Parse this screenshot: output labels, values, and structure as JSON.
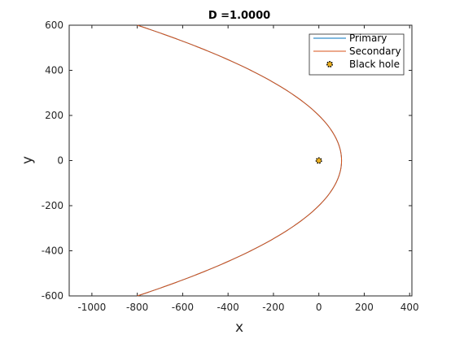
{
  "chart_data": {
    "type": "line",
    "title": "D =1.0000",
    "xlabel": "x",
    "ylabel": "y",
    "xlim": [
      -1100,
      410
    ],
    "ylim": [
      -600,
      600
    ],
    "xticks": [
      -1000,
      -800,
      -600,
      -400,
      -200,
      0,
      200,
      400
    ],
    "yticks": [
      -600,
      -400,
      -200,
      0,
      200,
      400,
      600
    ],
    "xtick_labels": [
      "-1000",
      "-800",
      "-600",
      "-400",
      "-200",
      "0",
      "200",
      "400"
    ],
    "ytick_labels": [
      "-600",
      "-400",
      "-200",
      "0",
      "200",
      "400",
      "600"
    ],
    "grid": false,
    "legend_position": "top-right",
    "series": [
      {
        "name": "Primary",
        "color": "#0072BD",
        "style": "line",
        "x": [
          -800,
          -600,
          -400,
          -200,
          0,
          40,
          80,
          100,
          80,
          40,
          0,
          -200,
          -400,
          -600,
          -800
        ],
        "y": [
          600,
          520,
          424,
          300,
          200,
          150,
          80,
          0,
          -80,
          -150,
          -200,
          -300,
          -424,
          -520,
          -600
        ]
      },
      {
        "name": "Secondary",
        "color": "#D95319",
        "style": "line",
        "x": [
          -800,
          -600,
          -400,
          -200,
          0,
          40,
          80,
          100,
          80,
          40,
          0,
          -200,
          -400,
          -600,
          -800
        ],
        "y": [
          600,
          520,
          424,
          300,
          200,
          150,
          80,
          0,
          -80,
          -150,
          -200,
          -300,
          -424,
          -520,
          -600
        ]
      },
      {
        "name": "Black hole",
        "color": "#000000",
        "marker_color": "#EDB120",
        "style": "marker",
        "x": [
          0
        ],
        "y": [
          0
        ]
      }
    ]
  }
}
